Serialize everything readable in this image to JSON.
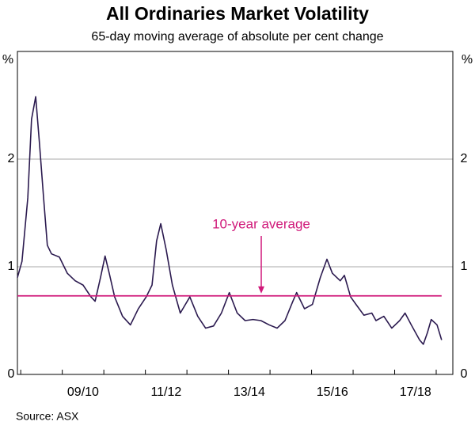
{
  "chart_data": {
    "type": "line",
    "title": "All Ordinaries Market Volatility",
    "subtitle": "65-day moving average of absolute per cent change",
    "y_unit": "%",
    "source": "Source:   ASX",
    "xlim": [
      2008.42,
      2018.9
    ],
    "xticks": [
      {
        "value": 2010,
        "label": "09/10"
      },
      {
        "value": 2012,
        "label": "11/12"
      },
      {
        "value": 2014,
        "label": "13/14"
      },
      {
        "value": 2016,
        "label": "15/16"
      },
      {
        "value": 2018,
        "label": "17/18"
      }
    ],
    "xtick_marks": [
      2008.5,
      2009.5,
      2010.5,
      2011.5,
      2012.5,
      2013.5,
      2014.5,
      2015.5,
      2016.5,
      2017.5,
      2018.5
    ],
    "ylim": [
      0,
      3
    ],
    "yticks": [
      0,
      1,
      2
    ],
    "grid": true,
    "series": [
      {
        "color": "#2b1a4f",
        "x": [
          2008.42,
          2008.53,
          2008.67,
          2008.76,
          2008.86,
          2008.95,
          2009.05,
          2009.14,
          2009.24,
          2009.43,
          2009.62,
          2009.81,
          2010.0,
          2010.19,
          2010.29,
          2010.42,
          2010.53,
          2010.63,
          2010.76,
          2010.95,
          2011.14,
          2011.33,
          2011.52,
          2011.66,
          2011.77,
          2011.87,
          2012.0,
          2012.15,
          2012.34,
          2012.57,
          2012.76,
          2012.95,
          2013.14,
          2013.33,
          2013.52,
          2013.71,
          2013.9,
          2014.09,
          2014.28,
          2014.48,
          2014.67,
          2014.86,
          2015.05,
          2015.14,
          2015.33,
          2015.52,
          2015.71,
          2015.87,
          2016.0,
          2016.19,
          2016.29,
          2016.44,
          2016.57,
          2016.76,
          2016.95,
          2017.05,
          2017.24,
          2017.43,
          2017.62,
          2017.75,
          2017.9,
          2018.1,
          2018.19,
          2018.29,
          2018.38,
          2018.52,
          2018.63
        ],
        "values": [
          0.9,
          1.05,
          1.64,
          2.37,
          2.58,
          2.15,
          1.64,
          1.2,
          1.12,
          1.09,
          0.94,
          0.87,
          0.83,
          0.72,
          0.68,
          0.9,
          1.1,
          0.94,
          0.72,
          0.54,
          0.46,
          0.61,
          0.72,
          0.83,
          1.24,
          1.4,
          1.16,
          0.83,
          0.57,
          0.72,
          0.54,
          0.43,
          0.45,
          0.57,
          0.76,
          0.57,
          0.5,
          0.51,
          0.5,
          0.46,
          0.43,
          0.5,
          0.68,
          0.76,
          0.61,
          0.65,
          0.9,
          1.07,
          0.94,
          0.87,
          0.92,
          0.72,
          0.65,
          0.55,
          0.57,
          0.5,
          0.54,
          0.43,
          0.5,
          0.57,
          0.46,
          0.32,
          0.28,
          0.39,
          0.51,
          0.46,
          0.32
        ]
      }
    ],
    "average": {
      "value": 0.73,
      "label": "10-year average",
      "color": "#d0197a"
    }
  }
}
